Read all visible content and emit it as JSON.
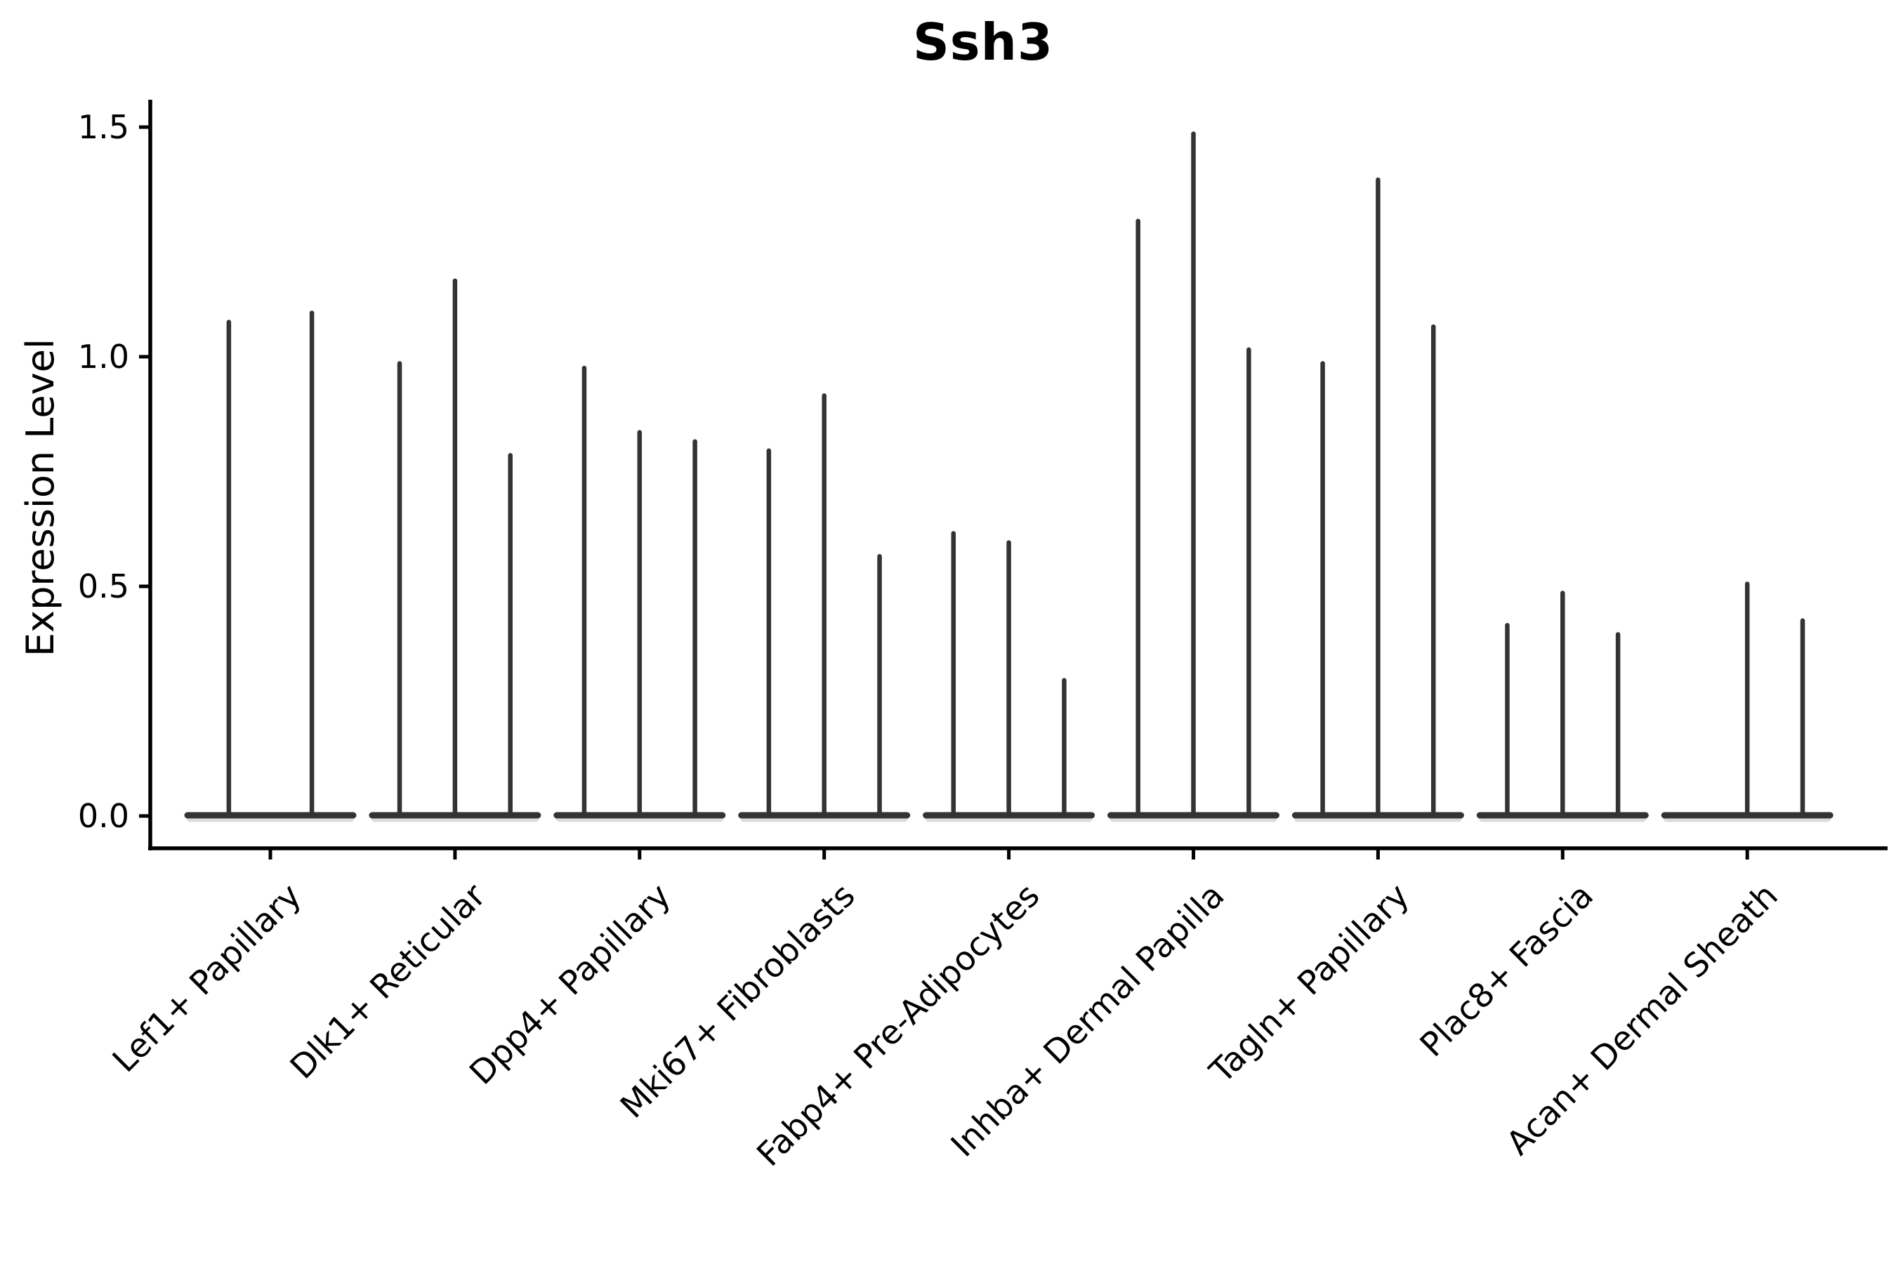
{
  "title": "Ssh3",
  "y_axis": {
    "label": "Expression Level"
  },
  "chart_data": {
    "type": "violin",
    "title": "Ssh3",
    "ylabel": "Expression Level",
    "xlabel": "",
    "ylim": [
      0,
      1.56
    ],
    "grid": false,
    "legend_position": "none",
    "ink_color": "#333333",
    "axis_color": "#000000",
    "yticks": [
      {
        "value": 0.0,
        "label": "0.0"
      },
      {
        "value": 0.5,
        "label": "0.5"
      },
      {
        "value": 1.0,
        "label": "1.0"
      },
      {
        "value": 1.5,
        "label": "1.5"
      }
    ],
    "categories": [
      "Lef1+ Papillary",
      "Dlk1+ Reticular",
      "Dpp4+ Papillary",
      "Mki67+ Fibroblasts",
      "Fabp4+ Pre-Adipocytes",
      "Inhba+ Dermal Papilla",
      "Tagln+ Papillary",
      "Plac8+ Fascia",
      "Acan+ Dermal Sheath"
    ],
    "groups": [
      {
        "label": "Lef1+ Papillary",
        "violin_maxima": [
          1.08,
          1.1
        ]
      },
      {
        "label": "Dlk1+ Reticular",
        "violin_maxima": [
          0.99,
          1.17,
          0.79
        ]
      },
      {
        "label": "Dpp4+ Papillary",
        "violin_maxima": [
          0.98,
          0.84,
          0.82
        ]
      },
      {
        "label": "Mki67+ Fibroblasts",
        "violin_maxima": [
          0.8,
          0.92,
          0.57
        ]
      },
      {
        "label": "Fabp4+ Pre-Adipocytes",
        "violin_maxima": [
          0.62,
          0.6,
          0.3
        ]
      },
      {
        "label": "Inhba+ Dermal Papilla",
        "violin_maxima": [
          1.3,
          1.49,
          1.02
        ]
      },
      {
        "label": "Tagln+ Papillary",
        "violin_maxima": [
          0.99,
          1.39,
          1.07
        ]
      },
      {
        "label": "Plac8+ Fascia",
        "violin_maxima": [
          0.42,
          0.49,
          0.4
        ]
      },
      {
        "label": "Acan+ Dermal Sheath",
        "violin_maxima": [
          0.0,
          0.51,
          0.43
        ]
      }
    ],
    "note": "violin_maxima are the top expression values of each thin violin spike; 0.0 denotes a flat all-zero violin with no spike"
  }
}
